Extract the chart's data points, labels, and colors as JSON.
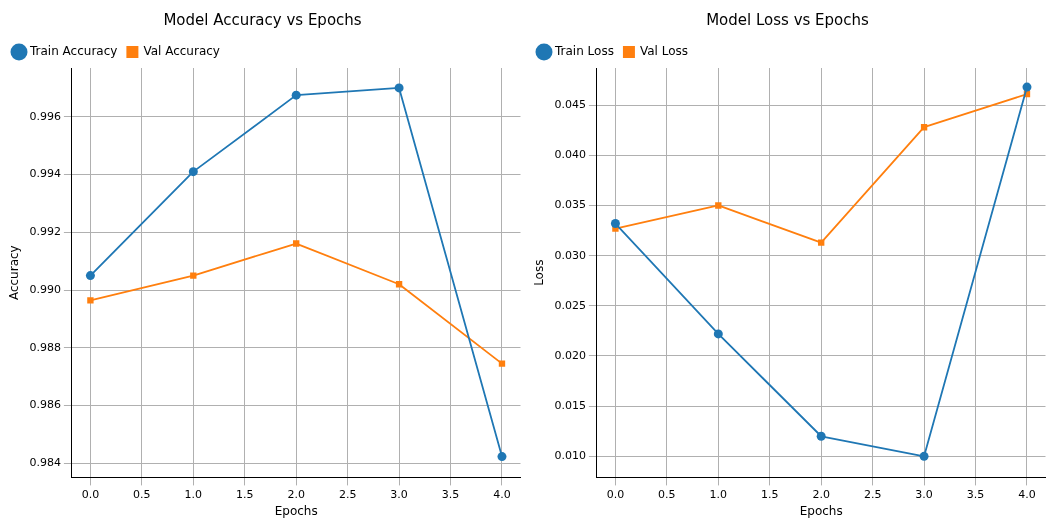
{
  "chart_data": [
    {
      "type": "line",
      "title": "Model Accuracy vs Epochs",
      "xlabel": "Epochs",
      "ylabel": "Accuracy",
      "x": [
        0,
        1,
        2,
        3,
        4
      ],
      "series": [
        {
          "name": "Train Accuracy",
          "color": "#1f77b4",
          "marker": "circle",
          "values": [
            0.9905,
            0.9941,
            0.99675,
            0.997,
            0.98423
          ]
        },
        {
          "name": "Val Accuracy",
          "color": "#ff7f0e",
          "marker": "square",
          "values": [
            0.98964,
            0.9905,
            0.99161,
            0.9902,
            0.98745
          ]
        }
      ],
      "xlim": [
        -0.18,
        4.18
      ],
      "ylim": [
        0.98351,
        0.99769
      ],
      "xticks": [
        {
          "value": 0,
          "label": "0.0"
        },
        {
          "value": 0.5,
          "label": "0.5"
        },
        {
          "value": 1,
          "label": "1.0"
        },
        {
          "value": 1.5,
          "label": "1.5"
        },
        {
          "value": 2,
          "label": "2.0"
        },
        {
          "value": 2.5,
          "label": "2.5"
        },
        {
          "value": 3,
          "label": "3.0"
        },
        {
          "value": 3.5,
          "label": "3.5"
        },
        {
          "value": 4,
          "label": "4.0"
        }
      ],
      "yticks": [
        {
          "value": 0.984,
          "label": "0.984"
        },
        {
          "value": 0.986,
          "label": "0.986"
        },
        {
          "value": 0.988,
          "label": "0.988"
        },
        {
          "value": 0.99,
          "label": "0.990"
        },
        {
          "value": 0.992,
          "label": "0.992"
        },
        {
          "value": 0.994,
          "label": "0.994"
        },
        {
          "value": 0.996,
          "label": "0.996"
        }
      ],
      "grid": true,
      "legend": "top left",
      "line_style": "solid"
    },
    {
      "type": "line",
      "title": "Model Loss vs Epochs",
      "xlabel": "Epochs",
      "ylabel": "Loss",
      "x": [
        0,
        1,
        2,
        3,
        4
      ],
      "series": [
        {
          "name": "Train Loss",
          "color": "#1f77b4",
          "marker": "circle",
          "values": [
            0.0332,
            0.0222,
            0.012,
            0.01,
            0.0468
          ]
        },
        {
          "name": "Val Loss",
          "color": "#ff7f0e",
          "marker": "square",
          "values": [
            0.0327,
            0.035,
            0.0313,
            0.0428,
            0.0461
          ]
        }
      ],
      "xlim": [
        -0.18,
        4.18
      ],
      "ylim": [
        0.0079,
        0.0487
      ],
      "xticks": [
        {
          "value": 0,
          "label": "0.0"
        },
        {
          "value": 0.5,
          "label": "0.5"
        },
        {
          "value": 1,
          "label": "1.0"
        },
        {
          "value": 1.5,
          "label": "1.5"
        },
        {
          "value": 2,
          "label": "2.0"
        },
        {
          "value": 2.5,
          "label": "2.5"
        },
        {
          "value": 3,
          "label": "3.0"
        },
        {
          "value": 3.5,
          "label": "3.5"
        },
        {
          "value": 4,
          "label": "4.0"
        }
      ],
      "yticks": [
        {
          "value": 0.01,
          "label": "0.010"
        },
        {
          "value": 0.015,
          "label": "0.015"
        },
        {
          "value": 0.02,
          "label": "0.020"
        },
        {
          "value": 0.025,
          "label": "0.025"
        },
        {
          "value": 0.03,
          "label": "0.030"
        },
        {
          "value": 0.035,
          "label": "0.035"
        },
        {
          "value": 0.04,
          "label": "0.040"
        },
        {
          "value": 0.045,
          "label": "0.045"
        }
      ],
      "grid": true,
      "legend": "top left",
      "line_style": "solid"
    }
  ]
}
